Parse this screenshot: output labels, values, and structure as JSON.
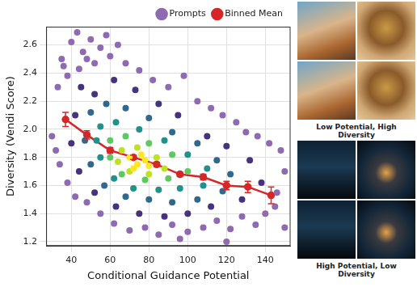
{
  "chart_data": {
    "type": "scatter",
    "x_label": "Conditional Guidance Potential",
    "y_label": "Diversity (Vendi Score)",
    "xlim": [
      27,
      153
    ],
    "ylim": [
      1.17,
      2.73
    ],
    "xticks": [
      40,
      60,
      80,
      100,
      120,
      140
    ],
    "yticks": [
      1.2,
      1.4,
      1.6,
      1.8,
      {
        "value": 2,
        "label": "2.0"
      },
      2.2,
      2.4,
      2.6
    ],
    "grid": true,
    "legend": "upper right",
    "series": [
      {
        "name": "Prompts",
        "type": "scatter",
        "color": "#8e6bb0",
        "marker": "circle",
        "x": [
          40,
          43,
          46,
          36,
          50,
          55,
          64,
          48,
          58,
          33,
          38,
          30,
          35,
          44,
          52,
          60,
          68,
          75,
          82,
          90,
          98,
          105,
          112,
          118,
          125,
          130,
          136,
          142,
          148,
          150,
          146,
          140,
          135,
          128,
          122,
          115,
          108,
          100,
          92,
          85,
          78,
          70,
          62,
          55,
          48,
          42,
          38,
          34,
          32,
          150,
          145,
          120,
          96,
          45,
          52,
          62,
          73,
          85,
          95,
          110,
          120,
          132,
          138,
          128,
          112,
          100,
          88,
          75,
          63,
          52,
          44,
          40,
          42,
          50,
          58,
          68,
          80,
          92,
          105,
          115,
          122,
          118,
          105,
          92,
          80,
          68,
          57,
          50,
          47,
          55,
          63,
          75,
          88,
          100,
          110,
          108,
          96,
          85,
          72,
          62,
          55,
          53,
          60,
          68,
          80,
          92,
          100,
          90,
          78,
          66,
          60,
          66,
          74,
          84,
          88,
          80,
          70,
          64,
          70,
          74,
          78,
          72,
          76,
          80
        ],
        "values": [
          2.62,
          2.69,
          2.55,
          2.45,
          2.64,
          2.58,
          2.6,
          2.5,
          2.67,
          2.3,
          2.38,
          1.95,
          2.5,
          2.43,
          2.47,
          2.52,
          2.47,
          2.42,
          2.35,
          2.3,
          2.38,
          2.2,
          2.15,
          2.1,
          2.05,
          1.98,
          1.95,
          1.9,
          1.85,
          1.7,
          1.55,
          1.4,
          1.32,
          1.38,
          1.29,
          1.35,
          1.3,
          1.27,
          1.32,
          1.25,
          1.3,
          1.28,
          1.33,
          1.4,
          1.48,
          1.52,
          1.62,
          1.75,
          1.85,
          1.3,
          1.45,
          1.2,
          1.22,
          2.3,
          2.25,
          2.35,
          2.28,
          2.18,
          2.1,
          1.95,
          1.88,
          1.78,
          1.62,
          1.5,
          1.45,
          1.4,
          1.38,
          1.4,
          1.45,
          1.55,
          1.7,
          1.9,
          2.1,
          2.12,
          2.18,
          2.15,
          2.08,
          1.98,
          1.9,
          1.78,
          1.68,
          1.56,
          1.5,
          1.48,
          1.5,
          1.52,
          1.6,
          1.75,
          1.92,
          2.02,
          2.05,
          2.0,
          1.92,
          1.82,
          1.72,
          1.6,
          1.58,
          1.57,
          1.58,
          1.65,
          1.8,
          1.92,
          1.92,
          1.95,
          1.9,
          1.82,
          1.7,
          1.65,
          1.64,
          1.68,
          1.8,
          1.85,
          1.87,
          1.8,
          1.72,
          1.68,
          1.7,
          1.77,
          1.8,
          1.75,
          1.78,
          1.72,
          1.82,
          1.74
        ],
        "colors": [
          "#8e6bb0",
          "#8e6bb0",
          "#8e6bb0",
          "#8e6bb0",
          "#8e6bb0",
          "#8e6bb0",
          "#8e6bb0",
          "#8e6bb0",
          "#8e6bb0",
          "#8e6bb0",
          "#8e6bb0",
          "#8e6bb0",
          "#8e6bb0",
          "#8e6bb0",
          "#8e6bb0",
          "#8e6bb0",
          "#8e6bb0",
          "#8e6bb0",
          "#8e6bb0",
          "#8e6bb0",
          "#8e6bb0",
          "#8e6bb0",
          "#8e6bb0",
          "#8e6bb0",
          "#8e6bb0",
          "#8e6bb0",
          "#8e6bb0",
          "#8e6bb0",
          "#8e6bb0",
          "#8e6bb0",
          "#8e6bb0",
          "#8e6bb0",
          "#8e6bb0",
          "#8e6bb0",
          "#8e6bb0",
          "#8e6bb0",
          "#8e6bb0",
          "#8e6bb0",
          "#8e6bb0",
          "#8e6bb0",
          "#8e6bb0",
          "#8e6bb0",
          "#8e6bb0",
          "#8e6bb0",
          "#8e6bb0",
          "#8e6bb0",
          "#8e6bb0",
          "#8e6bb0",
          "#8e6bb0",
          "#8e6bb0",
          "#8e6bb0",
          "#8e6bb0",
          "#8e6bb0",
          "#46337e",
          "#46337e",
          "#46337e",
          "#46337e",
          "#46337e",
          "#46337e",
          "#46337e",
          "#46337e",
          "#46337e",
          "#46337e",
          "#46337e",
          "#46337e",
          "#46337e",
          "#46337e",
          "#46337e",
          "#46337e",
          "#46337e",
          "#46337e",
          "#46337e",
          "#46337e",
          "#31688e",
          "#31688e",
          "#31688e",
          "#31688e",
          "#31688e",
          "#31688e",
          "#31688e",
          "#31688e",
          "#31688e",
          "#31688e",
          "#31688e",
          "#31688e",
          "#31688e",
          "#31688e",
          "#31688e",
          "#31688e",
          "#21918c",
          "#21918c",
          "#21918c",
          "#21918c",
          "#21918c",
          "#21918c",
          "#21918c",
          "#21918c",
          "#21918c",
          "#21918c",
          "#21918c",
          "#21918c",
          "#21918c",
          "#5ec962",
          "#5ec962",
          "#5ec962",
          "#5ec962",
          "#5ec962",
          "#5ec962",
          "#5ec962",
          "#5ec962",
          "#5ec962",
          "#c2df23",
          "#c2df23",
          "#c2df23",
          "#c2df23",
          "#c2df23",
          "#c2df23",
          "#c2df23",
          "#fde725",
          "#fde725",
          "#fde725",
          "#fde725",
          "#fde725",
          "#fde725"
        ]
      },
      {
        "name": "Binned Mean",
        "type": "line",
        "color": "#d62728",
        "marker": "circle",
        "line_style": "solid",
        "x": [
          37,
          48,
          60,
          72,
          84,
          96,
          108,
          120,
          131,
          143
        ],
        "values": [
          2.07,
          1.96,
          1.85,
          1.8,
          1.75,
          1.68,
          1.66,
          1.6,
          1.59,
          1.53
        ],
        "errors": [
          0.05,
          0.03,
          0.02,
          0.015,
          0.015,
          0.015,
          0.02,
          0.03,
          0.04,
          0.06
        ]
      }
    ]
  },
  "panels": [
    {
      "caption": "Low Potential, High Diversity"
    },
    {
      "caption": "High Potential, Low Diversity"
    }
  ]
}
